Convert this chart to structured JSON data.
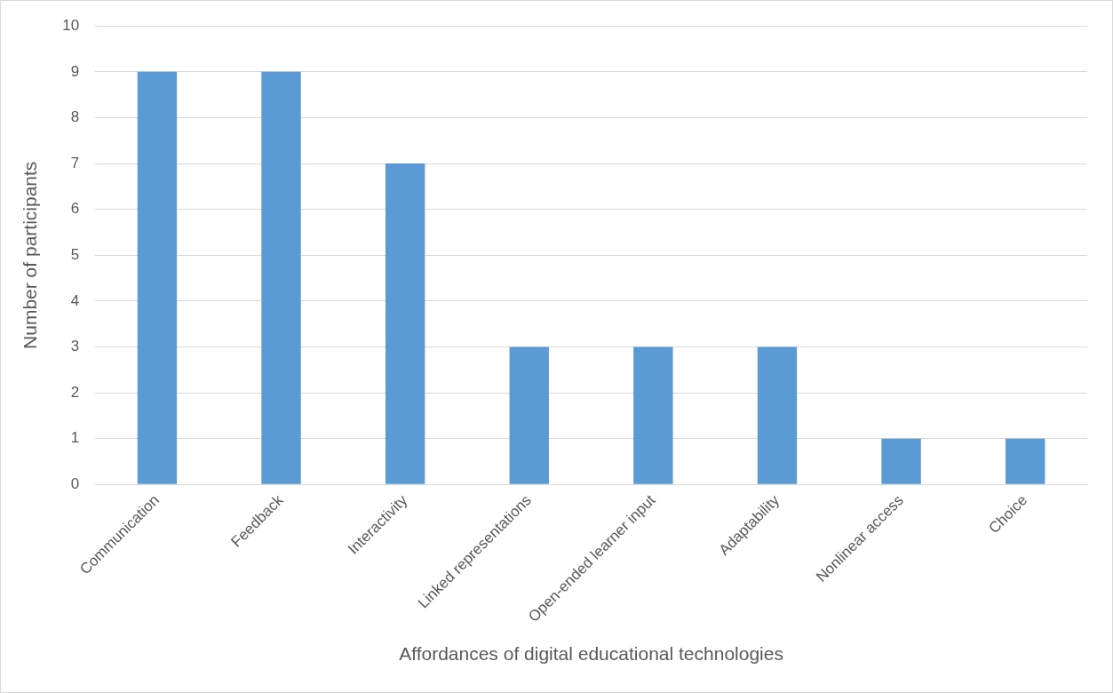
{
  "chart_data": {
    "type": "bar",
    "xlabel": "Affordances of digital educational technologies",
    "ylabel": "Number of participants",
    "categories": [
      "Communication",
      "Feedback",
      "Interactivity",
      "Linked representations",
      "Open-ended learner input",
      "Adaptability",
      "Nonlinear access",
      "Choice"
    ],
    "values": [
      9,
      9,
      7,
      3,
      3,
      3,
      1,
      1
    ],
    "color": "#5b9bd5",
    "ylim": [
      0,
      10
    ],
    "yticks": [
      0,
      1,
      2,
      3,
      4,
      5,
      6,
      7,
      8,
      9,
      10
    ],
    "grid": "y"
  }
}
